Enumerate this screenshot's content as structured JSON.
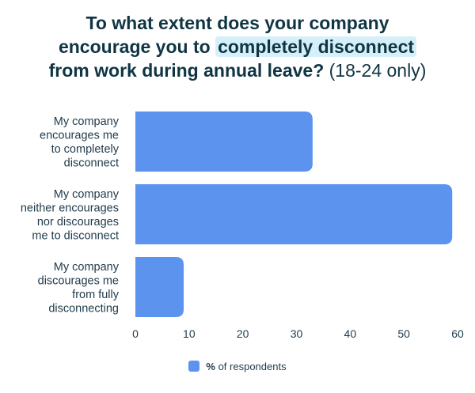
{
  "title": {
    "line1": "To what extent does your company",
    "line2_pre": "encourage you to",
    "line2_highlight": "completely disconnect",
    "line3": "from work during annual leave?",
    "line3_note": "(18-24 only)"
  },
  "legend": {
    "symbol": "%",
    "label": "of respondents"
  },
  "colors": {
    "bar": "#5b93ee",
    "highlight": "#d6f0fb",
    "text": "#1f3a4a"
  },
  "chart_data": {
    "type": "bar",
    "orientation": "horizontal",
    "categories": [
      [
        "My company",
        "encourages me",
        "to completely",
        "disconnect"
      ],
      [
        "My company",
        "neither encourages",
        "nor discourages",
        "me to disconnect"
      ],
      [
        "My company",
        "discourages me",
        "from fully",
        "disconnecting"
      ]
    ],
    "series": [
      {
        "name": "% of respondents",
        "values": [
          33,
          59,
          9
        ]
      }
    ],
    "xlim": [
      0,
      60
    ],
    "xticks": [
      0,
      10,
      20,
      30,
      40,
      50,
      60
    ],
    "grid": false,
    "legend_position": "bottom-center"
  }
}
